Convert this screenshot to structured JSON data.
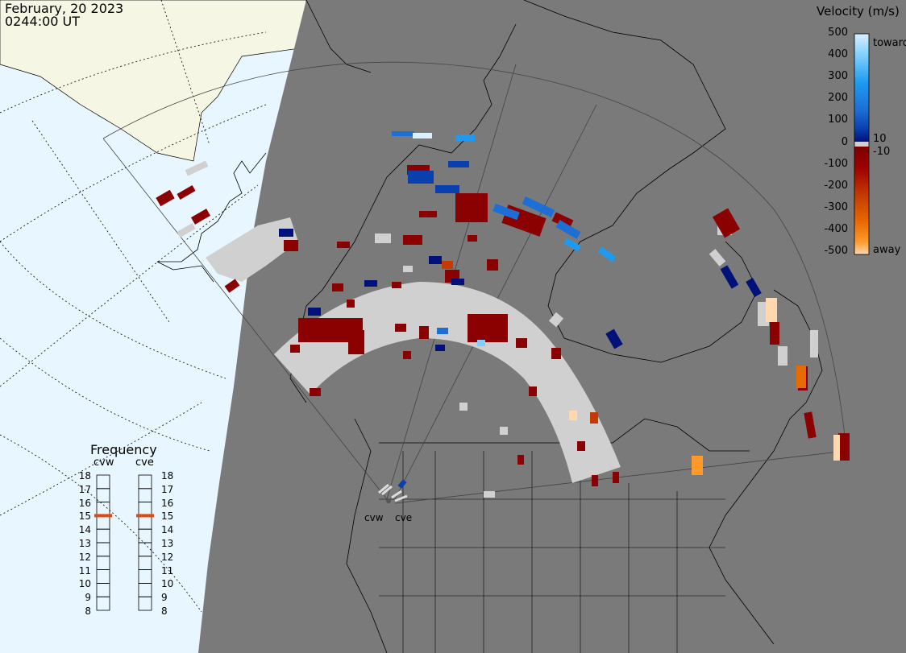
{
  "header": {
    "date": "February, 20 2023",
    "time": "0244:00 UT"
  },
  "velocity_legend": {
    "title": "Velocity (m/s)",
    "scale_labels": [
      "500",
      "400",
      "300",
      "200",
      "100",
      "0",
      "-100",
      "-200",
      "-300",
      "-400",
      "-500"
    ],
    "side_labels": [
      "toward",
      "10",
      "-10",
      "away"
    ],
    "colors": {
      "toward_500": "#d8f0ff",
      "toward_400": "#7fd0ff",
      "toward_300": "#1e9bf0",
      "toward_200": "#1d6fd6",
      "toward_100": "#0a3fb0",
      "toward_0": "#00127a",
      "ground": "#d0d0d0",
      "away_0": "#7a0000",
      "away_100": "#a00000",
      "away_200": "#c43a00",
      "away_300": "#e86a00",
      "away_400": "#ff9a2a",
      "away_500": "#ffd8b0"
    }
  },
  "frequency_legend": {
    "title": "Frequency",
    "radars": [
      {
        "name": "cvw",
        "selected_mhz": 15
      },
      {
        "name": "cve",
        "selected_mhz": 15
      }
    ],
    "scale": [
      "18",
      "17",
      "16",
      "15",
      "14",
      "13",
      "12",
      "11",
      "10",
      "9",
      "8"
    ],
    "marker_color": "#e04a10"
  },
  "map": {
    "ocean_color": "#e8f6ff",
    "land_night_color": "#7a7a7a",
    "land_day_color": "#f6f6e4",
    "radar_site_labels": [
      "cvw",
      "cve"
    ]
  }
}
